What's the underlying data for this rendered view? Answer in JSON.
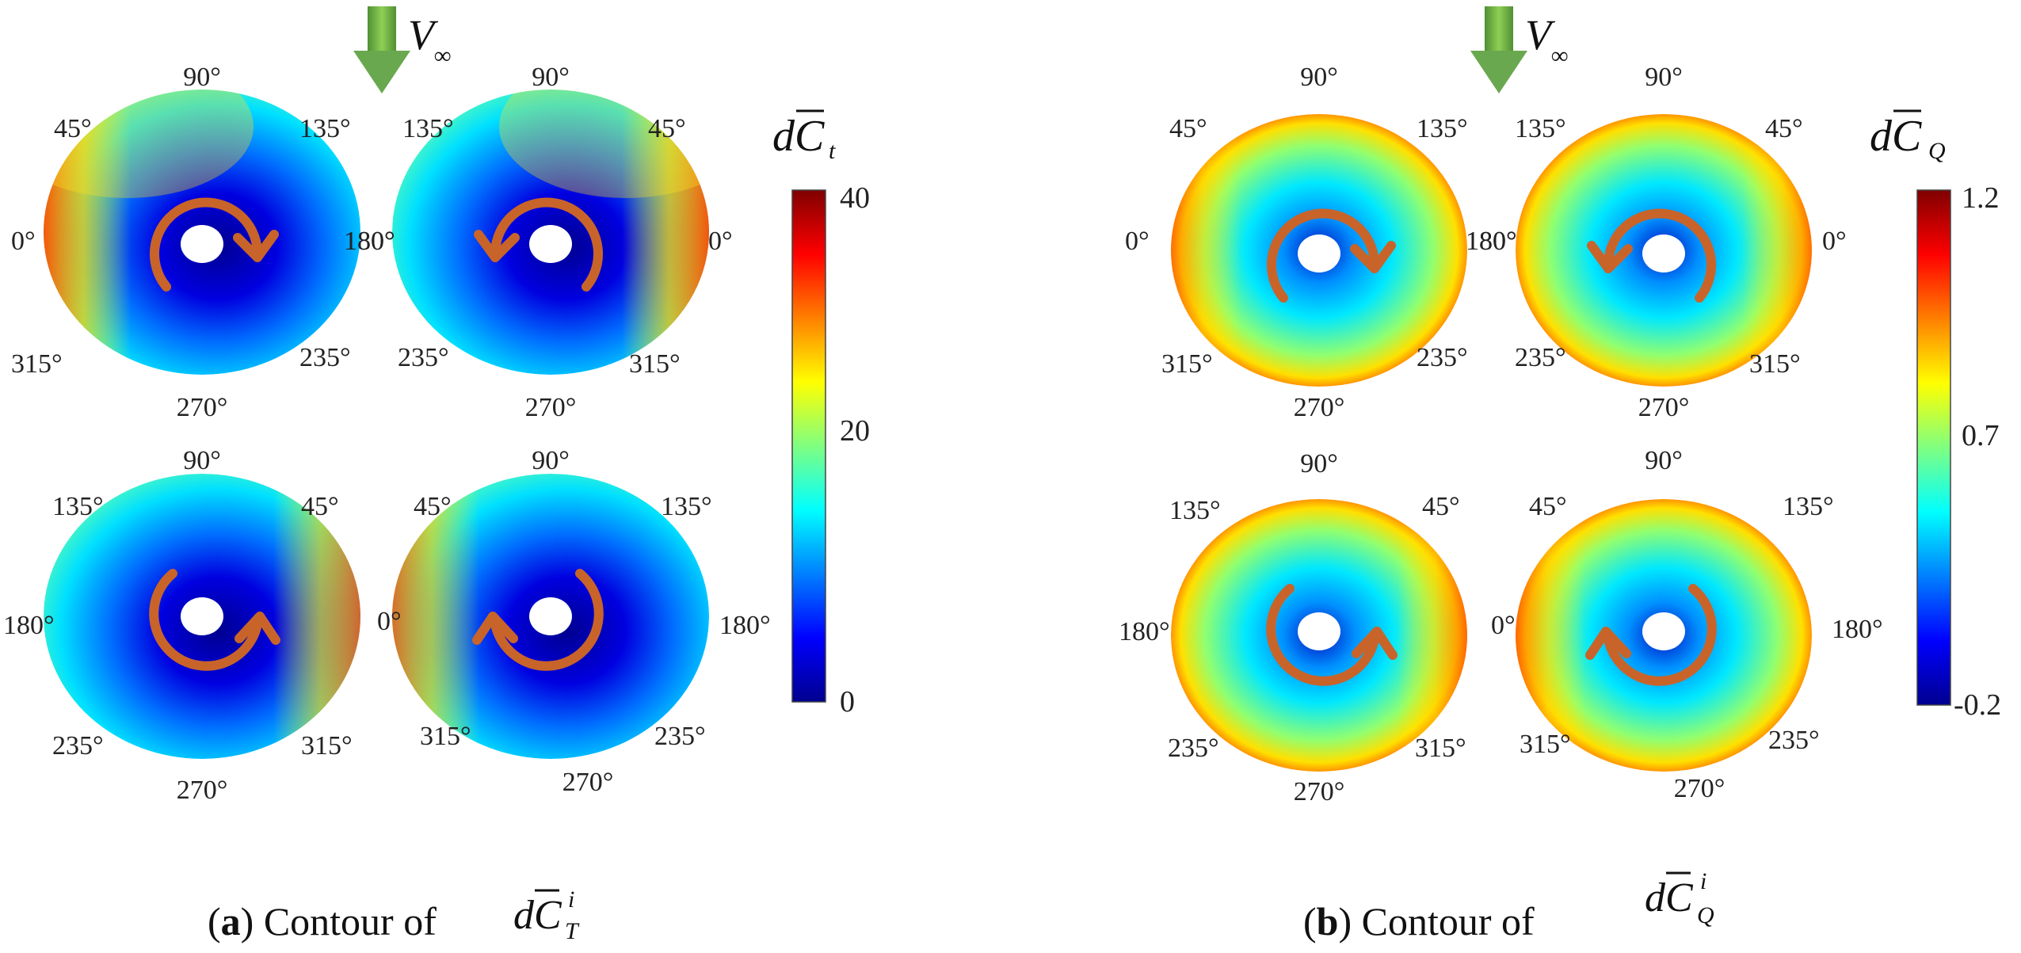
{
  "panels": [
    {
      "id": "a",
      "caption_letter": "a",
      "caption_text": "Contour of",
      "caption_math": "dC",
      "caption_sup": "i",
      "caption_sub": "T",
      "colorbar": {
        "title": "dC",
        "title_sub": "t",
        "ticks": [
          "40",
          "20",
          "0"
        ],
        "min": 0,
        "max": 40
      },
      "freestream_label": "V",
      "freestream_sub": "∞",
      "discs": [
        {
          "angles": {
            "top": "90°",
            "tl": "45°",
            "tr": "135°",
            "left": "0°",
            "right": "180°",
            "bl": "315°",
            "br": "235°",
            "bottom": "270°"
          },
          "rotation": "cw"
        },
        {
          "angles": {
            "top": "90°",
            "tl": "135°",
            "tr": "45°",
            "left": "180°",
            "right": "0°",
            "bl": "235°",
            "br": "315°",
            "bottom": "270°"
          },
          "rotation": "ccw"
        },
        {
          "angles": {
            "top": "90°",
            "tl": "135°",
            "tr": "45°",
            "left": "180°",
            "right": "",
            "bl": "235°",
            "br": "315°",
            "bottom": "270°"
          },
          "rotation": "ccw"
        },
        {
          "angles": {
            "top": "90°",
            "tl": "45°",
            "tr": "135°",
            "left": "0°",
            "right": "180°",
            "bl": "315°",
            "br": "235°",
            "bottom": "270°"
          },
          "rotation": "cw"
        }
      ]
    },
    {
      "id": "b",
      "caption_letter": "b",
      "caption_text": "Contour of",
      "caption_math": "dC",
      "caption_sup": "i",
      "caption_sub": "Q",
      "colorbar": {
        "title": "dC",
        "title_sub": "Q",
        "ticks": [
          "1.2",
          "0.7",
          "-0.2"
        ],
        "min": -0.2,
        "max": 1.2
      },
      "freestream_label": "V",
      "freestream_sub": "∞",
      "discs": [
        {
          "angles": {
            "top": "90°",
            "tl": "45°",
            "tr": "135°",
            "left": "0°",
            "right": "180°",
            "bl": "315°",
            "br": "235°",
            "bottom": "270°"
          },
          "rotation": "cw"
        },
        {
          "angles": {
            "top": "90°",
            "tl": "135°",
            "tr": "45°",
            "left": "180°",
            "right": "0°",
            "bl": "235°",
            "br": "315°",
            "bottom": "270°"
          },
          "rotation": "ccw"
        },
        {
          "angles": {
            "top": "90°",
            "tl": "135°",
            "tr": "45°",
            "left": "180°",
            "right": "",
            "bl": "235°",
            "br": "315°",
            "bottom": "270°"
          },
          "rotation": "ccw"
        },
        {
          "angles": {
            "top": "90°",
            "tl": "45°",
            "tr": "135°",
            "left": "0°",
            "right": "180°",
            "bl": "315°",
            "br": "235°",
            "bottom": "270°"
          },
          "rotation": "cw"
        }
      ]
    }
  ],
  "colors": {
    "jet": [
      "#00008f",
      "#0000ff",
      "#0080ff",
      "#00ffff",
      "#80ff80",
      "#ffff00",
      "#ff8000",
      "#ff0000",
      "#800000"
    ],
    "rotation_arrow": "#c8642a",
    "flow_arrow": "#6aa84f"
  }
}
